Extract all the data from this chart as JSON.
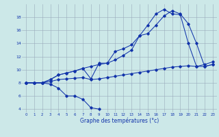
{
  "xlabel": "Graphe des températures (°c)",
  "background_color": "#cce8e8",
  "grid_color": "#99aabb",
  "line_color": "#1133aa",
  "x_hours": [
    0,
    1,
    2,
    3,
    4,
    5,
    6,
    7,
    8,
    9,
    10,
    11,
    12,
    13,
    14,
    15,
    16,
    17,
    18,
    19,
    20,
    21,
    22,
    23
  ],
  "series1_x": [
    0,
    1,
    2,
    3,
    4,
    5,
    6,
    7,
    8,
    9
  ],
  "series1_y": [
    8.0,
    8.0,
    8.0,
    7.8,
    7.2,
    6.0,
    6.0,
    5.5,
    4.2,
    4.0
  ],
  "series2_x": [
    0,
    1,
    2,
    3,
    4,
    5,
    6,
    7,
    8,
    9,
    10,
    11,
    12,
    13,
    14,
    15,
    16,
    17,
    18,
    19,
    20,
    21,
    22,
    23
  ],
  "series2_y": [
    8.0,
    8.0,
    8.0,
    8.2,
    8.5,
    8.6,
    8.7,
    8.8,
    8.5,
    8.6,
    8.8,
    9.0,
    9.2,
    9.4,
    9.6,
    9.8,
    10.0,
    10.2,
    10.4,
    10.5,
    10.6,
    10.5,
    10.5,
    10.8
  ],
  "series3_x": [
    0,
    1,
    2,
    3,
    4,
    5,
    6,
    7,
    8,
    9,
    10,
    11,
    12,
    13,
    14,
    15,
    16,
    17,
    18,
    19,
    20,
    21,
    22,
    23
  ],
  "series3_y": [
    8.0,
    8.0,
    8.0,
    8.5,
    9.2,
    9.5,
    9.8,
    10.2,
    8.6,
    11.0,
    11.0,
    12.8,
    13.2,
    13.8,
    15.2,
    15.5,
    16.8,
    18.2,
    19.0,
    18.5,
    17.0,
    14.0,
    10.5,
    10.8
  ],
  "series4_x": [
    0,
    1,
    2,
    3,
    4,
    5,
    6,
    7,
    8,
    9,
    10,
    11,
    12,
    13,
    14,
    15,
    16,
    17,
    18,
    19,
    20,
    21,
    22,
    23
  ],
  "series4_y": [
    8.0,
    8.0,
    8.0,
    8.5,
    9.2,
    9.5,
    9.8,
    10.2,
    10.5,
    10.8,
    11.0,
    11.5,
    12.2,
    13.0,
    15.2,
    16.8,
    18.5,
    19.2,
    18.5,
    18.4,
    14.0,
    10.5,
    10.8,
    11.2
  ],
  "ylim": [
    3.5,
    20
  ],
  "yticks": [
    4,
    6,
    8,
    10,
    12,
    14,
    16,
    18
  ],
  "figsize": [
    3.2,
    2.0
  ],
  "dpi": 100
}
